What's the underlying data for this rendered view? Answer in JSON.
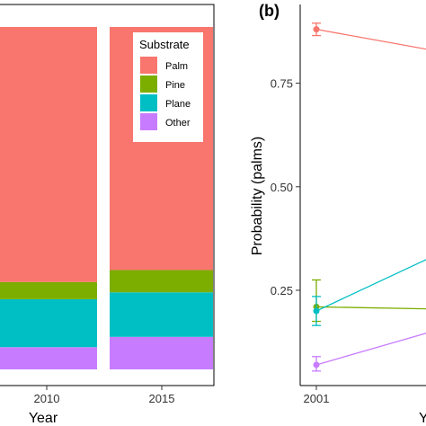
{
  "chart_data": [
    {
      "type": "bar",
      "stacked": true,
      "normalized": true,
      "xlabel": "Year",
      "ylabel": "",
      "categories": [
        "2010",
        "2015"
      ],
      "legend_title": "Substrate",
      "legend_position": "top-right",
      "series": [
        {
          "name": "Other",
          "color": "#C77CFF",
          "values": [
            0.065,
            0.095
          ]
        },
        {
          "name": "Plane",
          "color": "#00BFC4",
          "values": [
            0.14,
            0.13
          ]
        },
        {
          "name": "Pine",
          "color": "#7CAE00",
          "values": [
            0.05,
            0.065
          ]
        },
        {
          "name": "Palm",
          "color": "#F8766D",
          "values": [
            0.745,
            0.71
          ]
        }
      ],
      "legend_order": [
        "Palm",
        "Pine",
        "Plane",
        "Other"
      ],
      "grid": false
    },
    {
      "type": "line",
      "panel_label": "(b)",
      "xlabel": "Y",
      "ylabel": "Probability (palms)",
      "x_ticks": [
        "2001"
      ],
      "y_ticks": [
        "0.25",
        "0.50",
        "0.75"
      ],
      "ylim": [
        0.02,
        0.94
      ],
      "grid": false,
      "error_bars": true,
      "series": [
        {
          "name": "",
          "color": "#F8766D",
          "x": [
            "2001",
            "next"
          ],
          "y": [
            0.88,
            0.83
          ],
          "err_low": [
            0.865
          ],
          "err_high": [
            0.895
          ]
        },
        {
          "name": "",
          "color": "#7CAE00",
          "x": [
            "2001",
            "next"
          ],
          "y": [
            0.21,
            0.205
          ],
          "err_low": [
            0.175
          ],
          "err_high": [
            0.275
          ]
        },
        {
          "name": "",
          "color": "#00BFC4",
          "x": [
            "2001",
            "next"
          ],
          "y": [
            0.2,
            0.33
          ],
          "err_low": [
            0.165
          ],
          "err_high": [
            0.235
          ]
        },
        {
          "name": "",
          "color": "#C77CFF",
          "x": [
            "2001",
            "next"
          ],
          "y": [
            0.07,
            0.15
          ],
          "err_low": [
            0.055
          ],
          "err_high": [
            0.09
          ]
        }
      ]
    }
  ]
}
